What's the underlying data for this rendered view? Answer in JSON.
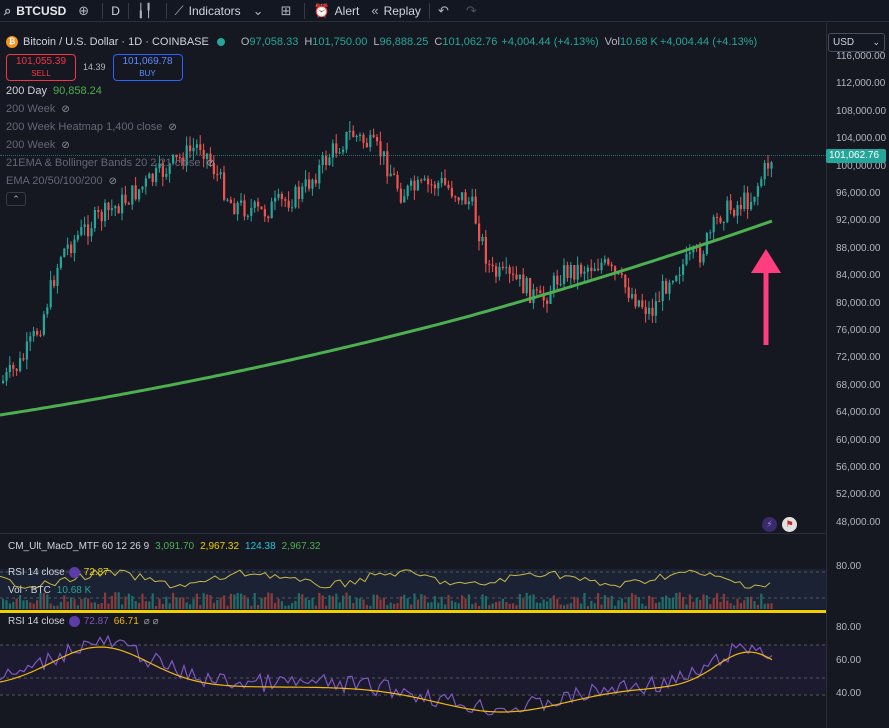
{
  "toolbar": {
    "symbol": "BTCUSD",
    "add_icon": "plus-circle-icon",
    "interval": "D",
    "chart_type_icon": "candles-icon",
    "indicators": "Indicators",
    "templates_icon": "layout-grid-icon",
    "alert": "Alert",
    "replay": "Replay",
    "undo_icon": "undo-icon",
    "redo_icon": "redo-icon"
  },
  "legend": {
    "title": "Bitcoin / U.S. Dollar · 1D · COINBASE",
    "open_label": "O",
    "open": "97,058.33",
    "high_label": "H",
    "high": "101,750.00",
    "low_label": "L",
    "low": "96,888.25",
    "close_label": "C",
    "close": "101,062.76",
    "change": "+4,004.44 (+4.13%)",
    "vol_label": "Vol",
    "vol": "10.68 K",
    "vol_change": "+4,004.44 (+4.13%)",
    "sell_price": "101,055.39",
    "sell_label": "SELL",
    "spread": "14.39",
    "buy_price": "101,069.78",
    "buy_label": "BUY",
    "indicators": [
      {
        "label": "200 Day",
        "value": "90,858.24"
      },
      {
        "label": "200 Week",
        "value": ""
      },
      {
        "label": "200 Week Heatmap 1,400 close",
        "value": ""
      },
      {
        "label": "200 Week",
        "value": ""
      },
      {
        "label": "21EMA & Bollinger Bands 20 2 21 close",
        "value": ""
      },
      {
        "label": "EMA 20/50/100/200",
        "value": ""
      }
    ],
    "collapse_icon": "chevron-up-icon"
  },
  "currency": "USD",
  "price_axis": {
    "ticks": [
      "116,000.00",
      "112,000.00",
      "108,000.00",
      "104,000.00",
      "100,000.00",
      "96,000.00",
      "92,000.00",
      "88,000.00",
      "84,000.00",
      "80,000.00",
      "76,000.00",
      "72,000.00",
      "68,000.00",
      "64,000.00",
      "60,000.00",
      "56,000.00",
      "52,000.00",
      "48,000.00"
    ],
    "current": "101,062.76"
  },
  "panels": {
    "macd": {
      "label": "CM_Ult_MacD_MTF 60 12 26 9",
      "v1": "3,091.70",
      "v2": "2,967.32",
      "v3": "124.38",
      "v4": "2,967.32"
    },
    "rsi_small": {
      "label": "RSI 14 close",
      "value": "72.87",
      "axis": "80.00"
    },
    "vol": {
      "label": "Vol · BTC",
      "value": "10.68 K"
    },
    "rsi": {
      "label": "RSI 14 close",
      "v1": "72.87",
      "v2": "66.71",
      "axis": [
        "80.00",
        "60.00",
        "40.00"
      ]
    }
  },
  "colors": {
    "up": "#26a69a",
    "down": "#ef5350",
    "ma": "#4caf50",
    "arrow": "#ff3d7f",
    "rsi": "#7e57c2",
    "rsi_ma": "#f0b90b"
  }
}
